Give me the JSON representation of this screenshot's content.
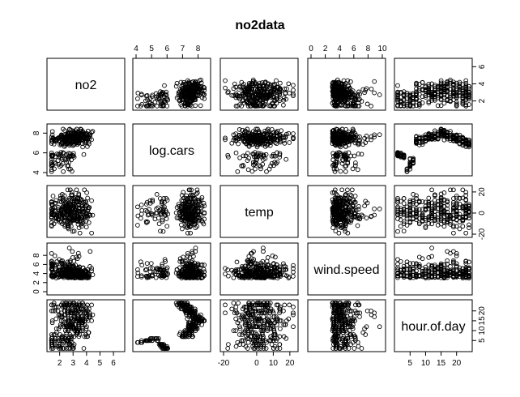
{
  "chart_data": {
    "type": "scatter",
    "title": "no2data",
    "variables": [
      {
        "name": "no2",
        "range": [
          1.3,
          6.6
        ],
        "ticks": [
          2,
          3,
          4,
          5,
          6
        ]
      },
      {
        "name": "log.cars",
        "range": [
          4.0,
          8.6
        ],
        "ticks": [
          4,
          5,
          6,
          7,
          8
        ]
      },
      {
        "name": "temp",
        "range": [
          -20,
          23
        ],
        "ticks": [
          -20,
          0,
          10,
          20
        ]
      },
      {
        "name": "wind.speed",
        "range": [
          0,
          10
        ],
        "ticks": [
          0,
          2,
          4,
          6,
          8,
          10
        ]
      },
      {
        "name": "hour.of.day",
        "range": [
          1,
          24
        ],
        "ticks": [
          5,
          10,
          15,
          20
        ]
      }
    ],
    "axis_ticks": {
      "top": [
        {
          "var": 1,
          "ticks": [
            4,
            5,
            6,
            7,
            8
          ]
        },
        {
          "var": 3,
          "ticks": [
            0,
            2,
            4,
            6,
            8,
            10
          ]
        }
      ],
      "bottom": [
        {
          "var": 0,
          "ticks": [
            2,
            3,
            4,
            5,
            6
          ]
        },
        {
          "var": 2,
          "ticks": [
            -20,
            0,
            10,
            20
          ]
        },
        {
          "var": 4,
          "ticks": [
            5,
            10,
            15,
            20
          ]
        }
      ],
      "left": [
        {
          "var": 1,
          "ticks": [
            4,
            6,
            8
          ]
        },
        {
          "var": 3,
          "ticks": [
            0,
            2,
            4,
            6,
            8
          ]
        }
      ],
      "right": [
        {
          "var": 0,
          "ticks": [
            2,
            4,
            6
          ]
        },
        {
          "var": 2,
          "ticks": [
            -20,
            0,
            20
          ]
        },
        {
          "var": 4,
          "ticks": [
            5,
            10,
            15,
            20
          ]
        }
      ]
    },
    "n_points": 300,
    "point_style": "open circle",
    "point_color": "#000000"
  }
}
